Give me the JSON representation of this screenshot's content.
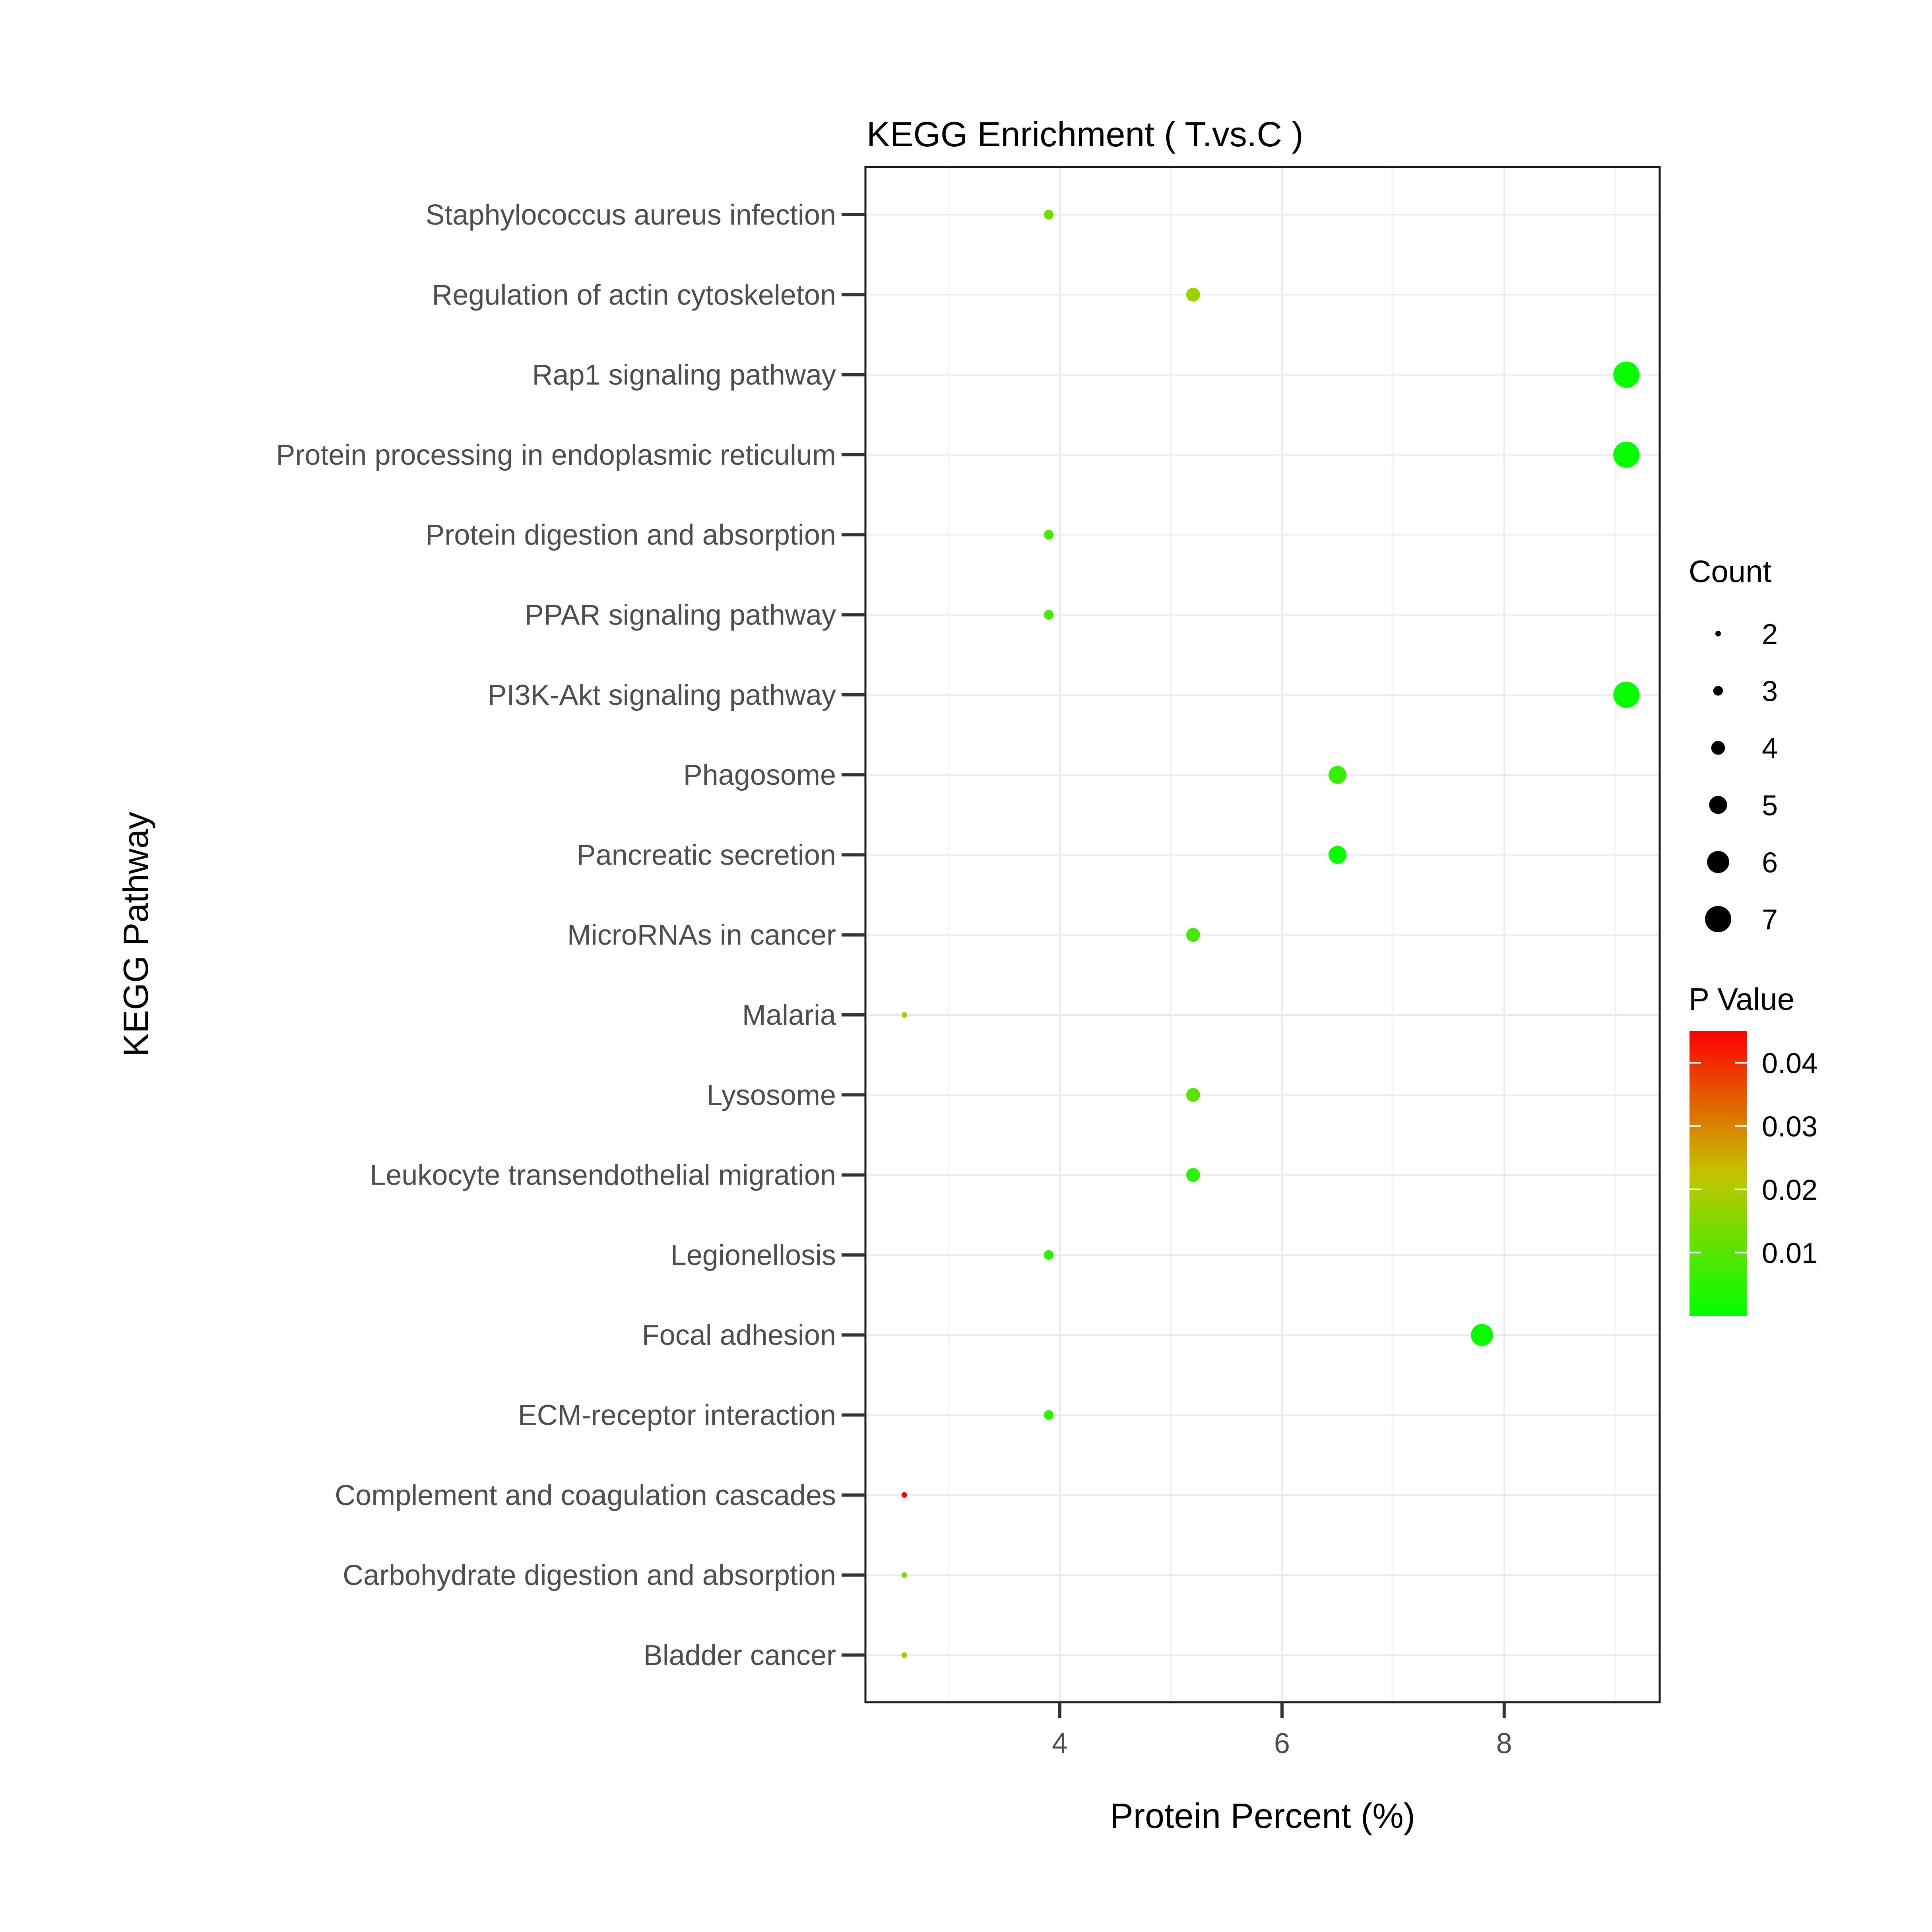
{
  "chart_data": {
    "type": "scatter",
    "title": "KEGG Enrichment ( T.vs.C )",
    "xlabel": "Protein Percent (%)",
    "ylabel": "KEGG Pathway",
    "xlim": [
      2.25,
      9.4
    ],
    "xticks": [
      4,
      6,
      8
    ],
    "grid": true,
    "categories": [
      "Staphylococcus aureus infection",
      "Regulation of actin cytoskeleton",
      "Rap1 signaling pathway",
      "Protein processing in endoplasmic reticulum",
      "Protein digestion and absorption",
      "PPAR signaling pathway",
      "PI3K-Akt signaling pathway",
      "Phagosome",
      "Pancreatic secretion",
      "MicroRNAs in cancer",
      "Malaria",
      "Lysosome",
      "Leukocyte transendothelial migration",
      "Legionellosis",
      "Focal adhesion",
      "ECM-receptor interaction",
      "Complement and coagulation cascades",
      "Carbohydrate digestion and absorption",
      "Bladder cancer"
    ],
    "points": [
      {
        "pathway": "Staphylococcus aureus infection",
        "x": 3.9,
        "count": 3,
        "pvalue": 0.013
      },
      {
        "pathway": "Regulation of actin cytoskeleton",
        "x": 5.2,
        "count": 4,
        "pvalue": 0.018
      },
      {
        "pathway": "Rap1 signaling pathway",
        "x": 9.1,
        "count": 7,
        "pvalue": 0.001
      },
      {
        "pathway": "Protein processing in endoplasmic reticulum",
        "x": 9.1,
        "count": 7,
        "pvalue": 0.001
      },
      {
        "pathway": "Protein digestion and absorption",
        "x": 3.9,
        "count": 3,
        "pvalue": 0.008
      },
      {
        "pathway": "PPAR signaling pathway",
        "x": 3.9,
        "count": 3,
        "pvalue": 0.008
      },
      {
        "pathway": "PI3K-Akt signaling pathway",
        "x": 9.1,
        "count": 7,
        "pvalue": 0.001
      },
      {
        "pathway": "Phagosome",
        "x": 6.5,
        "count": 5,
        "pvalue": 0.006
      },
      {
        "pathway": "Pancreatic secretion",
        "x": 6.5,
        "count": 5,
        "pvalue": 0.001
      },
      {
        "pathway": "MicroRNAs in cancer",
        "x": 5.2,
        "count": 4,
        "pvalue": 0.008
      },
      {
        "pathway": "Malaria",
        "x": 2.6,
        "count": 2,
        "pvalue": 0.017
      },
      {
        "pathway": "Lysosome",
        "x": 5.2,
        "count": 4,
        "pvalue": 0.01
      },
      {
        "pathway": "Leukocyte transendothelial migration",
        "x": 5.2,
        "count": 4,
        "pvalue": 0.005
      },
      {
        "pathway": "Legionellosis",
        "x": 3.9,
        "count": 3,
        "pvalue": 0.005
      },
      {
        "pathway": "Focal adhesion",
        "x": 7.8,
        "count": 6,
        "pvalue": 0.001
      },
      {
        "pathway": "ECM-receptor interaction",
        "x": 3.9,
        "count": 3,
        "pvalue": 0.005
      },
      {
        "pathway": "Complement and coagulation cascades",
        "x": 2.6,
        "count": 2,
        "pvalue": 0.045
      },
      {
        "pathway": "Carbohydrate digestion and absorption",
        "x": 2.6,
        "count": 2,
        "pvalue": 0.015
      },
      {
        "pathway": "Bladder cancer",
        "x": 2.6,
        "count": 2,
        "pvalue": 0.017
      }
    ],
    "size_legend": {
      "title": "Count",
      "values": [
        2,
        3,
        4,
        5,
        6,
        7
      ]
    },
    "color_legend": {
      "title": "P Value",
      "range": [
        0.0,
        0.045
      ],
      "ticks": [
        0.04,
        0.03,
        0.02,
        0.01
      ],
      "tick_labels": [
        "0.04",
        "0.03",
        "0.02",
        "0.01"
      ],
      "low_color": "#00ff00",
      "high_color": "#ff0000"
    }
  }
}
